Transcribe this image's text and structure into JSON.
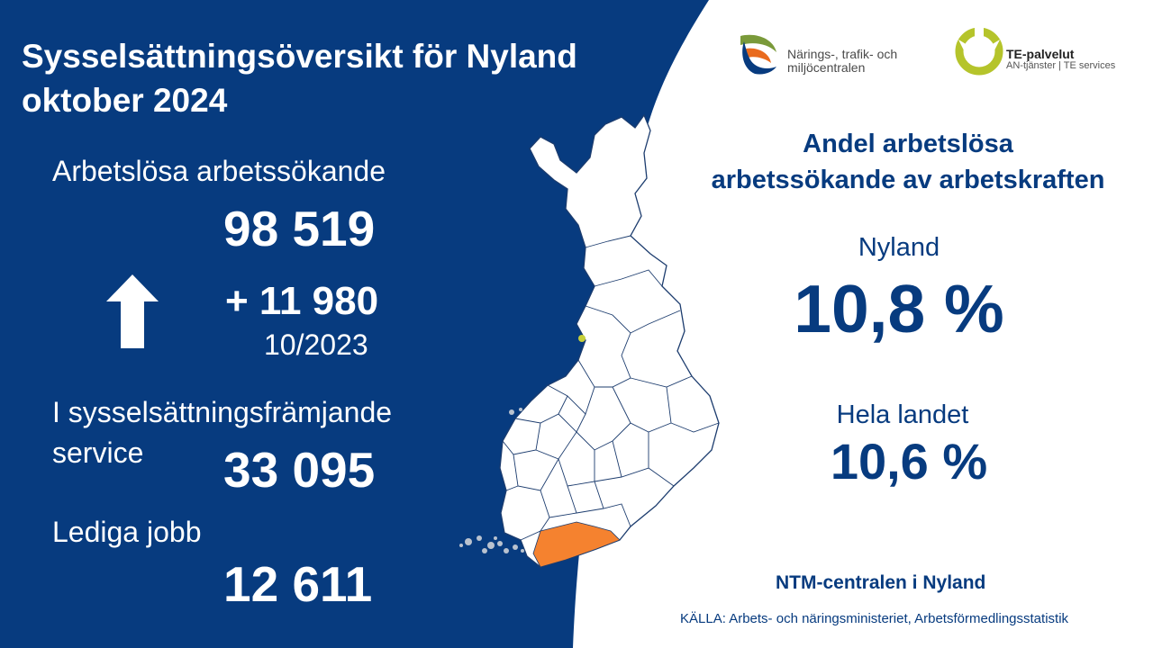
{
  "colors": {
    "navy": "#073b7f",
    "white": "#ffffff",
    "highlight_region": "#f5822f",
    "marker": "#c6cf3a"
  },
  "header": {
    "title_line1": "Sysselsättningsöversikt för Nyland",
    "title_line2": "oktober 2024"
  },
  "logos": {
    "ntm_line1": "Närings-, trafik- och",
    "ntm_line2": "miljöcentralen",
    "te_title": "TE-palvelut",
    "te_sub": "AN-tjänster | TE services"
  },
  "left": {
    "unemployed_label": "Arbetslösa arbetssökande",
    "unemployed_value": "98 519",
    "change_value": "+ 11 980",
    "change_period": "10/2023",
    "trend_icon": "arrow-up-icon",
    "services_label_line1": "I sysselsättningsfrämjande",
    "services_label_line2": "service",
    "services_value": "33 095",
    "jobs_label": "Lediga jobb",
    "jobs_value": "12 611"
  },
  "map": {
    "icon": "finland-map",
    "highlighted_region": "Nyland"
  },
  "right": {
    "heading_line1": "Andel arbetslösa",
    "heading_line2": "arbetssökande av arbetskraften",
    "region_label": "Nyland",
    "region_value": "10,8 %",
    "country_label": "Hela landet",
    "country_value": "10,6 %",
    "organization": "NTM-centralen i Nyland",
    "source": "KÄLLA: Arbets- och näringsministeriet, Arbetsförmedlingsstatistik"
  }
}
